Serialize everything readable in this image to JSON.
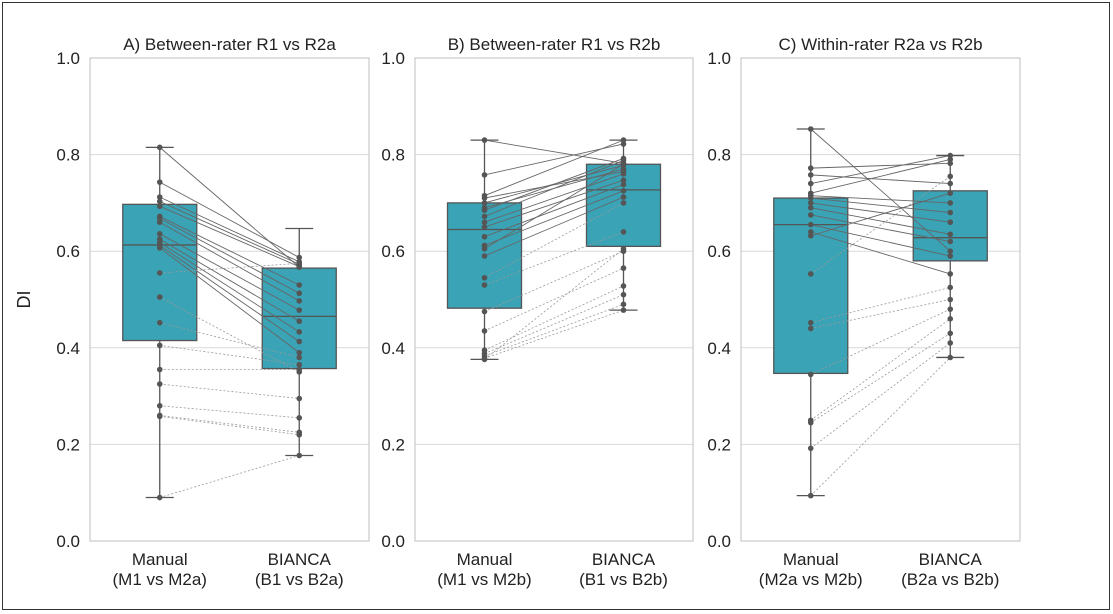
{
  "chart_data": {
    "type": "box",
    "ylabel": "DI",
    "ylim": [
      0.0,
      1.0
    ],
    "yticks": [
      "0.0",
      "0.2",
      "0.4",
      "0.6",
      "0.8",
      "1.0"
    ],
    "grid": "horizontal",
    "box_color": "#3aa3b5",
    "panels": [
      {
        "title": "A) Between-rater R1 vs R2a",
        "categories": [
          {
            "line1": "Manual",
            "line2": "(M1 vs M2a)"
          },
          {
            "line1": "BIANCA",
            "line2": "(B1 vs B2a)"
          }
        ],
        "boxes": [
          {
            "whisker_low": 0.09,
            "q1": 0.415,
            "median": 0.613,
            "q3": 0.697,
            "whisker_high": 0.815
          },
          {
            "whisker_low": 0.177,
            "q1": 0.357,
            "median": 0.465,
            "q3": 0.565,
            "whisker_high": 0.647
          }
        ],
        "pairs": [
          [
            0.815,
            0.567
          ],
          [
            0.743,
            0.587
          ],
          [
            0.712,
            0.578
          ],
          [
            0.703,
            0.573
          ],
          [
            0.693,
            0.568
          ],
          [
            0.672,
            0.53
          ],
          [
            0.668,
            0.513
          ],
          [
            0.66,
            0.497
          ],
          [
            0.636,
            0.478
          ],
          [
            0.625,
            0.455
          ],
          [
            0.618,
            0.433
          ],
          [
            0.612,
            0.413
          ],
          [
            0.607,
            0.39
          ],
          [
            0.555,
            0.575
          ],
          [
            0.505,
            0.35
          ],
          [
            0.452,
            0.38
          ],
          [
            0.405,
            0.365
          ],
          [
            0.355,
            0.355
          ],
          [
            0.325,
            0.295
          ],
          [
            0.28,
            0.255
          ],
          [
            0.26,
            0.225
          ],
          [
            0.258,
            0.22
          ],
          [
            0.09,
            0.177
          ]
        ],
        "solid_pairs": 13
      },
      {
        "title": "B) Between-rater R1 vs R2b",
        "categories": [
          {
            "line1": "Manual",
            "line2": "(M1 vs M2b)"
          },
          {
            "line1": "BIANCA",
            "line2": "(B1 vs B2b)"
          }
        ],
        "boxes": [
          {
            "whisker_low": 0.376,
            "q1": 0.482,
            "median": 0.645,
            "q3": 0.7,
            "whisker_high": 0.83
          },
          {
            "whisker_low": 0.478,
            "q1": 0.61,
            "median": 0.727,
            "q3": 0.78,
            "whisker_high": 0.83
          }
        ],
        "pairs": [
          [
            0.83,
            0.782
          ],
          [
            0.758,
            0.822
          ],
          [
            0.715,
            0.83
          ],
          [
            0.71,
            0.765
          ],
          [
            0.7,
            0.778
          ],
          [
            0.69,
            0.77
          ],
          [
            0.685,
            0.792
          ],
          [
            0.672,
            0.788
          ],
          [
            0.66,
            0.76
          ],
          [
            0.65,
            0.747
          ],
          [
            0.63,
            0.738
          ],
          [
            0.612,
            0.725
          ],
          [
            0.605,
            0.78
          ],
          [
            0.59,
            0.712
          ],
          [
            0.545,
            0.7
          ],
          [
            0.53,
            0.64
          ],
          [
            0.475,
            0.6
          ],
          [
            0.435,
            0.565
          ],
          [
            0.395,
            0.528
          ],
          [
            0.388,
            0.51
          ],
          [
            0.383,
            0.49
          ],
          [
            0.378,
            0.478
          ],
          [
            0.376,
            0.605
          ]
        ],
        "solid_pairs": 14
      },
      {
        "title": "C) Within-rater R2a vs R2b",
        "categories": [
          {
            "line1": "Manual",
            "line2": "(M2a vs M2b)"
          },
          {
            "line1": "BIANCA",
            "line2": "(B2a vs B2b)"
          }
        ],
        "boxes": [
          {
            "whisker_low": 0.094,
            "q1": 0.347,
            "median": 0.655,
            "q3": 0.71,
            "whisker_high": 0.853
          },
          {
            "whisker_low": 0.38,
            "q1": 0.58,
            "median": 0.628,
            "q3": 0.725,
            "whisker_high": 0.798
          }
        ],
        "pairs": [
          [
            0.853,
            0.6
          ],
          [
            0.772,
            0.782
          ],
          [
            0.758,
            0.74
          ],
          [
            0.74,
            0.798
          ],
          [
            0.72,
            0.79
          ],
          [
            0.715,
            0.7
          ],
          [
            0.71,
            0.68
          ],
          [
            0.7,
            0.66
          ],
          [
            0.69,
            0.635
          ],
          [
            0.675,
            0.62
          ],
          [
            0.655,
            0.59
          ],
          [
            0.64,
            0.553
          ],
          [
            0.632,
            0.72
          ],
          [
            0.553,
            0.755
          ],
          [
            0.452,
            0.525
          ],
          [
            0.44,
            0.5
          ],
          [
            0.345,
            0.48
          ],
          [
            0.25,
            0.46
          ],
          [
            0.245,
            0.43
          ],
          [
            0.192,
            0.41
          ],
          [
            0.094,
            0.38
          ]
        ],
        "solid_pairs": 13
      }
    ]
  }
}
